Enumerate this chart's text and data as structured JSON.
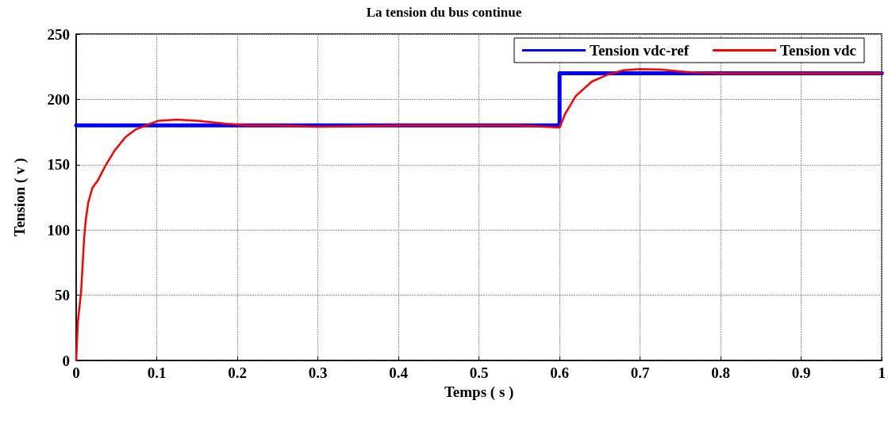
{
  "chart_data": {
    "type": "line",
    "title": "La tension du bus continue",
    "xlabel": "Temps ( s )",
    "ylabel": "Tension ( v )",
    "xlim": [
      0,
      1
    ],
    "xticks": [
      0,
      0.1,
      0.2,
      0.3,
      0.4,
      0.5,
      0.6,
      0.7,
      0.8,
      0.9,
      1
    ],
    "ylim": [
      0,
      250
    ],
    "yticks": [
      0,
      50,
      100,
      150,
      200,
      250
    ],
    "grid": true,
    "legend": "top right",
    "marker": "none",
    "line_style": "solid",
    "series": [
      {
        "name": "Tension vdc-ref",
        "color": "#0000ff",
        "x": [
          0,
          0.6,
          0.6,
          1
        ],
        "values": [
          180,
          180,
          220,
          220
        ]
      },
      {
        "name": "Tension vdc",
        "color": "#ff0000",
        "x": [
          0,
          0.002,
          0.006,
          0.008,
          0.01,
          0.012,
          0.015,
          0.02,
          0.027,
          0.037,
          0.048,
          0.061,
          0.074,
          0.089,
          0.102,
          0.125,
          0.151,
          0.187,
          0.213,
          0.25,
          0.3,
          0.35,
          0.4,
          0.45,
          0.5,
          0.55,
          0.6,
          0.607,
          0.62,
          0.64,
          0.66,
          0.679,
          0.699,
          0.725,
          0.751,
          0.768,
          0.8,
          0.9,
          1
        ],
        "values": [
          0,
          29,
          52,
          73,
          95,
          108,
          121,
          132,
          138,
          150,
          161,
          171,
          177,
          180.6,
          183.6,
          184.5,
          183.6,
          181.3,
          180,
          180,
          179,
          179.5,
          180,
          180,
          180,
          180,
          178.4,
          189,
          202.4,
          213.6,
          219,
          222.3,
          223.2,
          222.8,
          221.3,
          220.5,
          220,
          220,
          220
        ]
      }
    ]
  }
}
